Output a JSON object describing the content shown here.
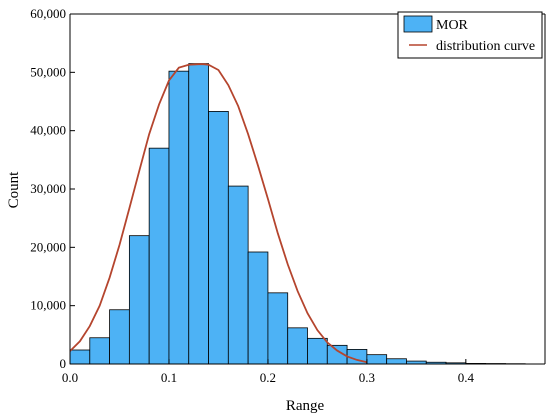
{
  "chart_data": {
    "type": "bar",
    "xlabel": "Range",
    "ylabel": "Count",
    "xlim": [
      0,
      0.48
    ],
    "ylim": [
      0,
      60000
    ],
    "x_ticks": [
      0.0,
      0.1,
      0.2,
      0.3,
      0.4
    ],
    "x_tick_labels": [
      "0.0",
      "0.1",
      "0.2",
      "0.3",
      "0.4"
    ],
    "y_ticks": [
      0,
      10000,
      20000,
      30000,
      40000,
      50000,
      60000
    ],
    "y_tick_labels": [
      "0",
      "10,000",
      "20,000",
      "30,000",
      "40,000",
      "50,000",
      "60,000"
    ],
    "legend_position": "top-right",
    "grid": false,
    "bin_width": 0.02,
    "series": [
      {
        "name": "MOR",
        "kind": "histogram",
        "color": "#4DB2F5",
        "bins_start": [
          0.0,
          0.02,
          0.04,
          0.06,
          0.08,
          0.1,
          0.12,
          0.14,
          0.16,
          0.18,
          0.2,
          0.22,
          0.24,
          0.26,
          0.28,
          0.3,
          0.32,
          0.34,
          0.36,
          0.38,
          0.4,
          0.42,
          0.44
        ],
        "values": [
          2400,
          4500,
          9300,
          22000,
          37000,
          50200,
          51500,
          43300,
          30500,
          19200,
          12200,
          6200,
          4400,
          3200,
          2500,
          1600,
          900,
          500,
          300,
          200,
          100,
          80,
          50
        ]
      },
      {
        "name": "distribution curve",
        "kind": "curve",
        "color": "#B5452E",
        "x": [
          0.0,
          0.01,
          0.02,
          0.03,
          0.04,
          0.05,
          0.06,
          0.07,
          0.08,
          0.09,
          0.1,
          0.11,
          0.12,
          0.13,
          0.135,
          0.14,
          0.15,
          0.16,
          0.17,
          0.18,
          0.19,
          0.2,
          0.21,
          0.22,
          0.23,
          0.24,
          0.25,
          0.26,
          0.27,
          0.28,
          0.29,
          0.3
        ],
        "y": [
          2200,
          3900,
          6500,
          10000,
          14800,
          20400,
          26700,
          33100,
          39400,
          44500,
          48600,
          50800,
          51300,
          51400,
          51400,
          51300,
          50400,
          47800,
          44200,
          39400,
          34000,
          28300,
          22400,
          17100,
          12500,
          8700,
          5800,
          3700,
          2300,
          1300,
          700,
          300
        ]
      }
    ]
  }
}
